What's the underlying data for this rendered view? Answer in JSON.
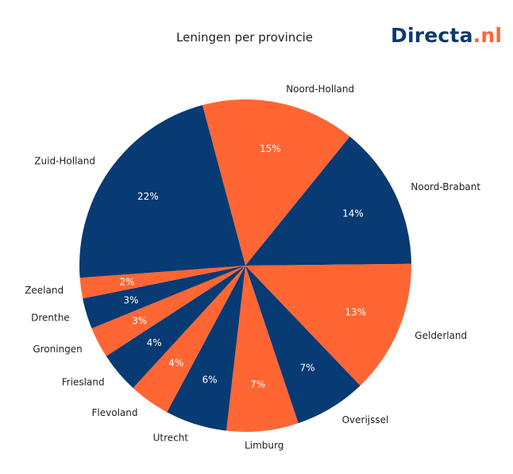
{
  "title": "Leningen per provincie",
  "logo": {
    "main": "Directa",
    "suffix": ".nl",
    "main_color": "#0f3a6e",
    "suffix_color": "#ff6633"
  },
  "colors": {
    "navy": "#083a74",
    "orange": "#ff6633"
  },
  "chart_data": {
    "type": "pie",
    "title": "Leningen per provincie",
    "slices": [
      {
        "name": "Noord-Holland",
        "value": 15,
        "label": "15%",
        "color": "#ff6633"
      },
      {
        "name": "Noord-Brabant",
        "value": 14,
        "label": "14%",
        "color": "#083a74"
      },
      {
        "name": "Gelderland",
        "value": 13,
        "label": "13%",
        "color": "#ff6633"
      },
      {
        "name": "Overijssel",
        "value": 7,
        "label": "7%",
        "color": "#083a74"
      },
      {
        "name": "Limburg",
        "value": 7,
        "label": "7%",
        "color": "#ff6633"
      },
      {
        "name": "Utrecht",
        "value": 6,
        "label": "6%",
        "color": "#083a74"
      },
      {
        "name": "Flevoland",
        "value": 4,
        "label": "4%",
        "color": "#ff6633"
      },
      {
        "name": "Friesland",
        "value": 4,
        "label": "4%",
        "color": "#083a74"
      },
      {
        "name": "Groningen",
        "value": 3,
        "label": "3%",
        "color": "#ff6633"
      },
      {
        "name": "Drenthe",
        "value": 3,
        "label": "3%",
        "color": "#083a74"
      },
      {
        "name": "Zeeland",
        "value": 2,
        "label": "2%",
        "color": "#ff6633"
      },
      {
        "name": "Zuid-Holland",
        "value": 22,
        "label": "22%",
        "color": "#083a74"
      }
    ]
  }
}
